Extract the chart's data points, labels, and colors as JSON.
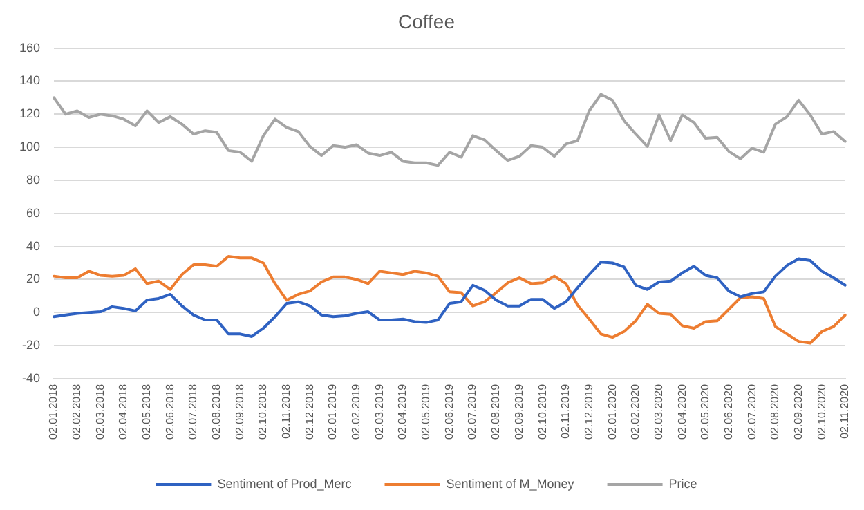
{
  "chart_data": {
    "type": "line",
    "title": "Coffee",
    "categories": [
      "02.01.2018",
      null,
      "02.02.2018",
      null,
      "02.03.2018",
      null,
      "02.04.2018",
      null,
      "02.05.2018",
      null,
      "02.06.2018",
      null,
      "02.07.2018",
      null,
      "02.08.2018",
      null,
      "02.09.2018",
      null,
      "02.10.2018",
      null,
      "02.11.2018",
      null,
      "02.12.2018",
      null,
      "02.01.2019",
      null,
      "02.02.2019",
      null,
      "02.03.2019",
      null,
      "02.04.2019",
      null,
      "02.05.2019",
      null,
      "02.06.2019",
      null,
      "02.07.2019",
      null,
      "02.08.2019",
      null,
      "02.09.2019",
      null,
      "02.10.2019",
      null,
      "02.11.2019",
      null,
      "02.12.2019",
      null,
      "02.01.2020",
      null,
      "02.02.2020",
      null,
      "02.03.2020",
      null,
      "02.04.2020",
      null,
      "02.05.2020",
      null,
      "02.06.2020",
      null,
      "02.07.2020",
      null,
      "02.08.2020",
      null,
      "02.09.2020",
      null,
      "02.10.2020",
      null,
      "02.11.2020"
    ],
    "series": [
      {
        "name": "Sentiment of Prod_Merc",
        "color": "#2f62c2",
        "values": [
          -2.5,
          -1.5,
          -0.5,
          0,
          0.5,
          3.5,
          2.5,
          1,
          7.5,
          8.5,
          11,
          4,
          -1.5,
          -4.5,
          -4.5,
          -13,
          -13,
          -14.5,
          -9.5,
          -2.5,
          5.5,
          6.5,
          4,
          -1.5,
          -2.5,
          -2,
          -0.5,
          0.5,
          -4.5,
          -4.5,
          -4,
          -5.5,
          -6,
          -4.5,
          5.5,
          6.5,
          16.5,
          13.5,
          7.5,
          4,
          4,
          8,
          8,
          2.5,
          6.5,
          15,
          23,
          30.5,
          30,
          27.5,
          16.5,
          14,
          18.5,
          19,
          24,
          28,
          22.5,
          21,
          13,
          9.5,
          11.5,
          12.5,
          22,
          28.5,
          32.5,
          31.5,
          25,
          21,
          16.5
        ]
      },
      {
        "name": "Sentiment of M_Money",
        "color": "#ed7d31",
        "values": [
          22,
          21,
          21,
          25,
          22.5,
          22,
          22.5,
          26.5,
          17.5,
          19,
          14,
          23,
          29,
          29,
          28,
          34,
          33,
          33,
          30,
          17.5,
          7.5,
          11,
          13,
          18.5,
          21.5,
          21.5,
          20,
          17.5,
          25,
          24,
          23,
          25,
          24,
          22,
          12.5,
          12,
          4,
          6.5,
          12,
          18,
          21,
          17.5,
          18,
          22,
          17.5,
          4.5,
          -4,
          -13,
          -15,
          -11.5,
          -5,
          5,
          -0.5,
          -1,
          -8,
          -9.5,
          -5.5,
          -5,
          2,
          9,
          9.5,
          8.5,
          -8.5,
          -13,
          -17.5,
          -18.5,
          -11.5,
          -8.5,
          -1.5
        ]
      },
      {
        "name": "Price",
        "color": "#a5a5a5",
        "values": [
          130,
          120,
          122,
          118,
          120,
          119,
          117,
          113,
          122,
          115,
          118.5,
          114,
          108,
          110,
          109,
          98,
          97,
          91.5,
          107,
          117,
          112,
          109.5,
          100.5,
          95,
          101,
          100,
          101.5,
          96.5,
          95,
          97,
          91.5,
          90.5,
          90.5,
          89,
          97,
          94,
          107,
          104.5,
          98,
          92,
          94.5,
          101,
          100,
          94.5,
          102,
          104,
          122,
          132,
          128.5,
          116,
          108,
          100.5,
          119.5,
          104,
          119.5,
          115,
          105.5,
          106,
          97.5,
          93,
          99.5,
          97,
          114,
          118.5,
          128.5,
          119.5,
          108,
          109.5,
          103.5
        ]
      }
    ],
    "ylim": [
      -40,
      160
    ],
    "yticks": [
      -40,
      -20,
      0,
      20,
      40,
      60,
      80,
      100,
      120,
      140,
      160
    ],
    "grid": "y",
    "legend": "bottom",
    "marker": "none",
    "line_style": "solid"
  }
}
